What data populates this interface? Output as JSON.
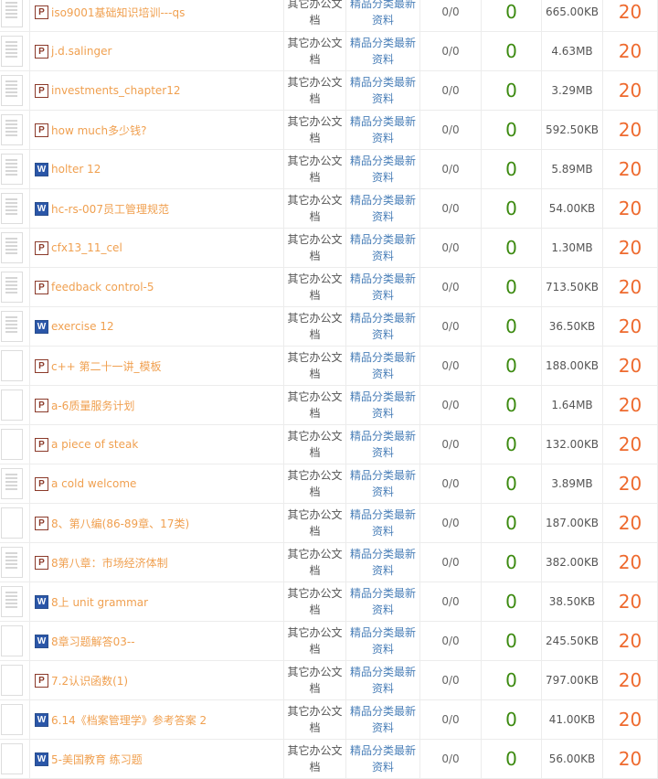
{
  "colors": {
    "title": "#f0a050",
    "category": "#555555",
    "subcategory": "#4a7fb8",
    "views": "#3c8a10",
    "points": "#ee6a2e"
  },
  "rows": [
    {
      "type": "P",
      "thumb": true,
      "title": "iso9001基础知识培训---qs",
      "category": "其它办公文档",
      "subcategory": "精品分类最新资料",
      "downloads": "0/0",
      "views": "0",
      "size": "665.00KB",
      "points": "20"
    },
    {
      "type": "P",
      "thumb": true,
      "title": "j.d.salinger",
      "category": "其它办公文档",
      "subcategory": "精品分类最新资料",
      "downloads": "0/0",
      "views": "0",
      "size": "4.63MB",
      "points": "20"
    },
    {
      "type": "P",
      "thumb": true,
      "title": "investments_chapter12",
      "category": "其它办公文档",
      "subcategory": "精品分类最新资料",
      "downloads": "0/0",
      "views": "0",
      "size": "3.29MB",
      "points": "20"
    },
    {
      "type": "P",
      "thumb": true,
      "title": "how much多少钱?",
      "category": "其它办公文档",
      "subcategory": "精品分类最新资料",
      "downloads": "0/0",
      "views": "0",
      "size": "592.50KB",
      "points": "20"
    },
    {
      "type": "W",
      "thumb": true,
      "title": "holter 12",
      "category": "其它办公文档",
      "subcategory": "精品分类最新资料",
      "downloads": "0/0",
      "views": "0",
      "size": "5.89MB",
      "points": "20"
    },
    {
      "type": "W",
      "thumb": true,
      "title": "hc-rs-007员工管理规范",
      "category": "其它办公文档",
      "subcategory": "精品分类最新资料",
      "downloads": "0/0",
      "views": "0",
      "size": "54.00KB",
      "points": "20"
    },
    {
      "type": "P",
      "thumb": true,
      "title": "cfx13_11_cel",
      "category": "其它办公文档",
      "subcategory": "精品分类最新资料",
      "downloads": "0/0",
      "views": "0",
      "size": "1.30MB",
      "points": "20"
    },
    {
      "type": "P",
      "thumb": true,
      "title": "feedback control-5",
      "category": "其它办公文档",
      "subcategory": "精品分类最新资料",
      "downloads": "0/0",
      "views": "0",
      "size": "713.50KB",
      "points": "20"
    },
    {
      "type": "W",
      "thumb": true,
      "title": "exercise 12",
      "category": "其它办公文档",
      "subcategory": "精品分类最新资料",
      "downloads": "0/0",
      "views": "0",
      "size": "36.50KB",
      "points": "20"
    },
    {
      "type": "P",
      "thumb": false,
      "title": "c++ 第二十一讲_模板",
      "category": "其它办公文档",
      "subcategory": "精品分类最新资料",
      "downloads": "0/0",
      "views": "0",
      "size": "188.00KB",
      "points": "20"
    },
    {
      "type": "P",
      "thumb": false,
      "title": "a-6质量服务计划",
      "category": "其它办公文档",
      "subcategory": "精品分类最新资料",
      "downloads": "0/0",
      "views": "0",
      "size": "1.64MB",
      "points": "20"
    },
    {
      "type": "P",
      "thumb": false,
      "title": "a piece of steak",
      "category": "其它办公文档",
      "subcategory": "精品分类最新资料",
      "downloads": "0/0",
      "views": "0",
      "size": "132.00KB",
      "points": "20"
    },
    {
      "type": "P",
      "thumb": true,
      "title": "a cold welcome",
      "category": "其它办公文档",
      "subcategory": "精品分类最新资料",
      "downloads": "0/0",
      "views": "0",
      "size": "3.89MB",
      "points": "20"
    },
    {
      "type": "P",
      "thumb": false,
      "title": "8、第八编(86-89章、17类)",
      "category": "其它办公文档",
      "subcategory": "精品分类最新资料",
      "downloads": "0/0",
      "views": "0",
      "size": "187.00KB",
      "points": "20"
    },
    {
      "type": "P",
      "thumb": true,
      "title": "8第八章：市场经济体制",
      "category": "其它办公文档",
      "subcategory": "精品分类最新资料",
      "downloads": "0/0",
      "views": "0",
      "size": "382.00KB",
      "points": "20"
    },
    {
      "type": "W",
      "thumb": true,
      "title": "8上 unit grammar",
      "category": "其它办公文档",
      "subcategory": "精品分类最新资料",
      "downloads": "0/0",
      "views": "0",
      "size": "38.50KB",
      "points": "20"
    },
    {
      "type": "W",
      "thumb": false,
      "title": "8章习题解答03--",
      "category": "其它办公文档",
      "subcategory": "精品分类最新资料",
      "downloads": "0/0",
      "views": "0",
      "size": "245.50KB",
      "points": "20"
    },
    {
      "type": "P",
      "thumb": false,
      "title": "7.2认识函数(1)",
      "category": "其它办公文档",
      "subcategory": "精品分类最新资料",
      "downloads": "0/0",
      "views": "0",
      "size": "797.00KB",
      "points": "20"
    },
    {
      "type": "W",
      "thumb": false,
      "title": "6.14《档案管理学》参考答案 2",
      "category": "其它办公文档",
      "subcategory": "精品分类最新资料",
      "downloads": "0/0",
      "views": "0",
      "size": "41.00KB",
      "points": "20"
    },
    {
      "type": "W",
      "thumb": false,
      "title": "5-美国教育 练习题",
      "category": "其它办公文档",
      "subcategory": "精品分类最新资料",
      "downloads": "0/0",
      "views": "0",
      "size": "56.00KB",
      "points": "20"
    }
  ]
}
